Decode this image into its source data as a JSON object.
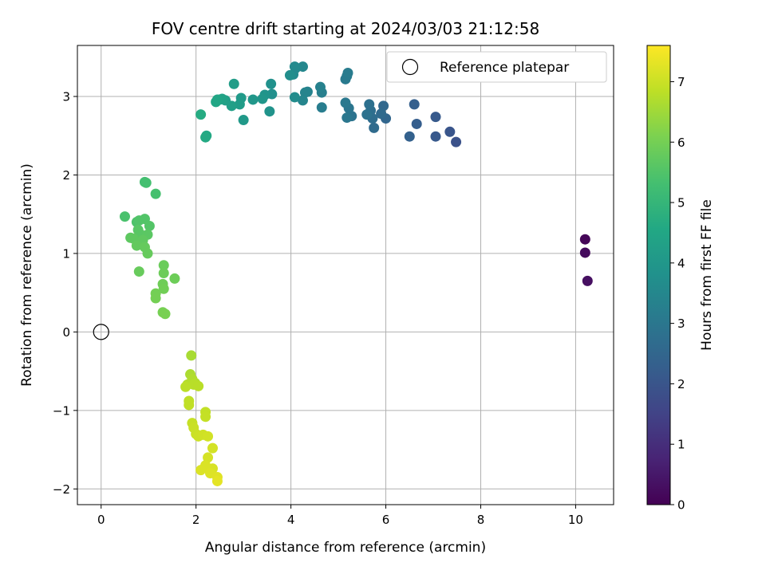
{
  "chart_data": {
    "type": "scatter",
    "title": "FOV centre drift starting at 2024/03/03 21:12:58",
    "xlabel": "Angular distance from reference (arcmin)",
    "ylabel": "Rotation from reference (arcmin)",
    "xlim": [
      -0.5,
      10.8
    ],
    "ylim": [
      -2.2,
      3.65
    ],
    "xticks": [
      0,
      2,
      4,
      6,
      8,
      10
    ],
    "yticks": [
      -2,
      -1,
      0,
      1,
      2,
      3
    ],
    "grid": true,
    "legend": {
      "placement": "top-right",
      "entries": [
        "Reference platepar"
      ]
    },
    "colorbar": {
      "label": "Hours from first FF file",
      "colormap": "viridis",
      "range": [
        0,
        7.6
      ],
      "ticks": [
        0,
        1,
        2,
        3,
        4,
        5,
        6,
        7
      ]
    },
    "reference_point": {
      "x": 0,
      "y": 0
    },
    "series": [
      {
        "points": [
          [
            10.2,
            1.18,
            0.1
          ],
          [
            10.2,
            1.01,
            0.2
          ],
          [
            10.25,
            0.65,
            0.3
          ],
          [
            7.48,
            2.42,
            1.9
          ],
          [
            7.35,
            2.55,
            2.0
          ],
          [
            7.05,
            2.49,
            2.1
          ],
          [
            7.05,
            2.74,
            2.15
          ],
          [
            6.65,
            2.65,
            2.25
          ],
          [
            6.6,
            2.9,
            2.3
          ],
          [
            6.5,
            2.49,
            2.35
          ],
          [
            6.0,
            2.72,
            2.5
          ],
          [
            5.95,
            2.88,
            2.55
          ],
          [
            5.9,
            2.78,
            2.6
          ],
          [
            5.75,
            2.6,
            2.65
          ],
          [
            5.72,
            2.72,
            2.7
          ],
          [
            5.68,
            2.82,
            2.75
          ],
          [
            5.65,
            2.9,
            2.8
          ],
          [
            5.6,
            2.77,
            2.85
          ],
          [
            5.28,
            2.75,
            2.9
          ],
          [
            5.22,
            2.85,
            2.95
          ],
          [
            5.18,
            2.73,
            3.0
          ],
          [
            5.15,
            2.92,
            3.05
          ],
          [
            5.15,
            3.22,
            3.1
          ],
          [
            5.18,
            3.26,
            3.12
          ],
          [
            5.2,
            3.3,
            3.15
          ],
          [
            4.65,
            2.86,
            3.2
          ],
          [
            4.65,
            3.05,
            3.25
          ],
          [
            4.62,
            3.12,
            3.3
          ],
          [
            4.35,
            3.06,
            3.35
          ],
          [
            4.3,
            3.05,
            3.4
          ],
          [
            4.25,
            2.95,
            3.45
          ],
          [
            4.25,
            3.38,
            3.5
          ],
          [
            4.1,
            3.36,
            3.55
          ],
          [
            4.08,
            3.38,
            3.58
          ],
          [
            4.05,
            3.28,
            3.6
          ],
          [
            4.08,
            2.99,
            3.65
          ],
          [
            3.98,
            3.27,
            3.7
          ],
          [
            3.6,
            3.03,
            3.75
          ],
          [
            3.58,
            3.16,
            3.8
          ],
          [
            3.55,
            2.81,
            3.85
          ],
          [
            3.45,
            3.02,
            3.9
          ],
          [
            3.4,
            2.97,
            3.95
          ],
          [
            3.2,
            2.96,
            4.0
          ],
          [
            3.0,
            2.7,
            4.05
          ],
          [
            2.95,
            2.98,
            4.1
          ],
          [
            2.92,
            2.9,
            4.15
          ],
          [
            2.8,
            3.16,
            4.2
          ],
          [
            2.75,
            2.88,
            4.25
          ],
          [
            2.62,
            2.95,
            4.3
          ],
          [
            2.55,
            2.97,
            4.35
          ],
          [
            2.5,
            2.96,
            4.4
          ],
          [
            2.45,
            2.96,
            4.45
          ],
          [
            2.42,
            2.93,
            4.5
          ],
          [
            2.22,
            2.5,
            4.55
          ],
          [
            2.2,
            2.48,
            4.6
          ],
          [
            2.1,
            2.77,
            4.65
          ],
          [
            0.92,
            1.91,
            5.3
          ],
          [
            0.95,
            1.9,
            5.32
          ],
          [
            1.15,
            1.76,
            5.35
          ],
          [
            0.5,
            1.47,
            5.4
          ],
          [
            0.75,
            1.4,
            5.45
          ],
          [
            0.8,
            1.42,
            5.5
          ],
          [
            0.92,
            1.44,
            5.52
          ],
          [
            1.02,
            1.35,
            5.55
          ],
          [
            0.78,
            1.3,
            5.6
          ],
          [
            0.82,
            1.25,
            5.62
          ],
          [
            0.98,
            1.24,
            5.65
          ],
          [
            0.62,
            1.2,
            5.68
          ],
          [
            0.68,
            1.19,
            5.7
          ],
          [
            0.88,
            1.17,
            5.72
          ],
          [
            0.75,
            1.1,
            5.75
          ],
          [
            0.92,
            1.08,
            5.78
          ],
          [
            0.98,
            1.0,
            5.8
          ],
          [
            0.8,
            0.77,
            5.82
          ],
          [
            1.32,
            0.85,
            5.85
          ],
          [
            1.32,
            0.75,
            5.88
          ],
          [
            1.55,
            0.68,
            5.9
          ],
          [
            1.3,
            0.61,
            5.92
          ],
          [
            1.32,
            0.55,
            5.95
          ],
          [
            1.15,
            0.49,
            5.98
          ],
          [
            1.15,
            0.43,
            6.0
          ],
          [
            1.3,
            0.25,
            6.02
          ],
          [
            1.35,
            0.23,
            6.05
          ],
          [
            1.9,
            -0.3,
            6.6
          ],
          [
            1.88,
            -0.54,
            6.65
          ],
          [
            1.92,
            -0.6,
            6.7
          ],
          [
            1.98,
            -0.65,
            6.72
          ],
          [
            1.82,
            -0.67,
            6.75
          ],
          [
            1.95,
            -0.67,
            6.78
          ],
          [
            2.05,
            -0.69,
            6.8
          ],
          [
            1.78,
            -0.7,
            6.82
          ],
          [
            1.85,
            -0.88,
            6.85
          ],
          [
            1.85,
            -0.93,
            6.88
          ],
          [
            2.2,
            -1.02,
            6.9
          ],
          [
            2.2,
            -1.08,
            6.92
          ],
          [
            1.92,
            -1.16,
            6.95
          ],
          [
            1.95,
            -1.22,
            6.98
          ],
          [
            2.0,
            -1.3,
            7.0
          ],
          [
            2.05,
            -1.33,
            7.02
          ],
          [
            2.15,
            -1.31,
            7.05
          ],
          [
            2.25,
            -1.33,
            7.08
          ],
          [
            2.35,
            -1.48,
            7.1
          ],
          [
            2.25,
            -1.6,
            7.12
          ],
          [
            2.35,
            -1.74,
            7.15
          ],
          [
            2.2,
            -1.7,
            7.18
          ],
          [
            2.1,
            -1.76,
            7.2
          ],
          [
            2.3,
            -1.8,
            7.22
          ],
          [
            2.45,
            -1.85,
            7.25
          ],
          [
            2.45,
            -1.9,
            7.3
          ]
        ]
      }
    ]
  }
}
